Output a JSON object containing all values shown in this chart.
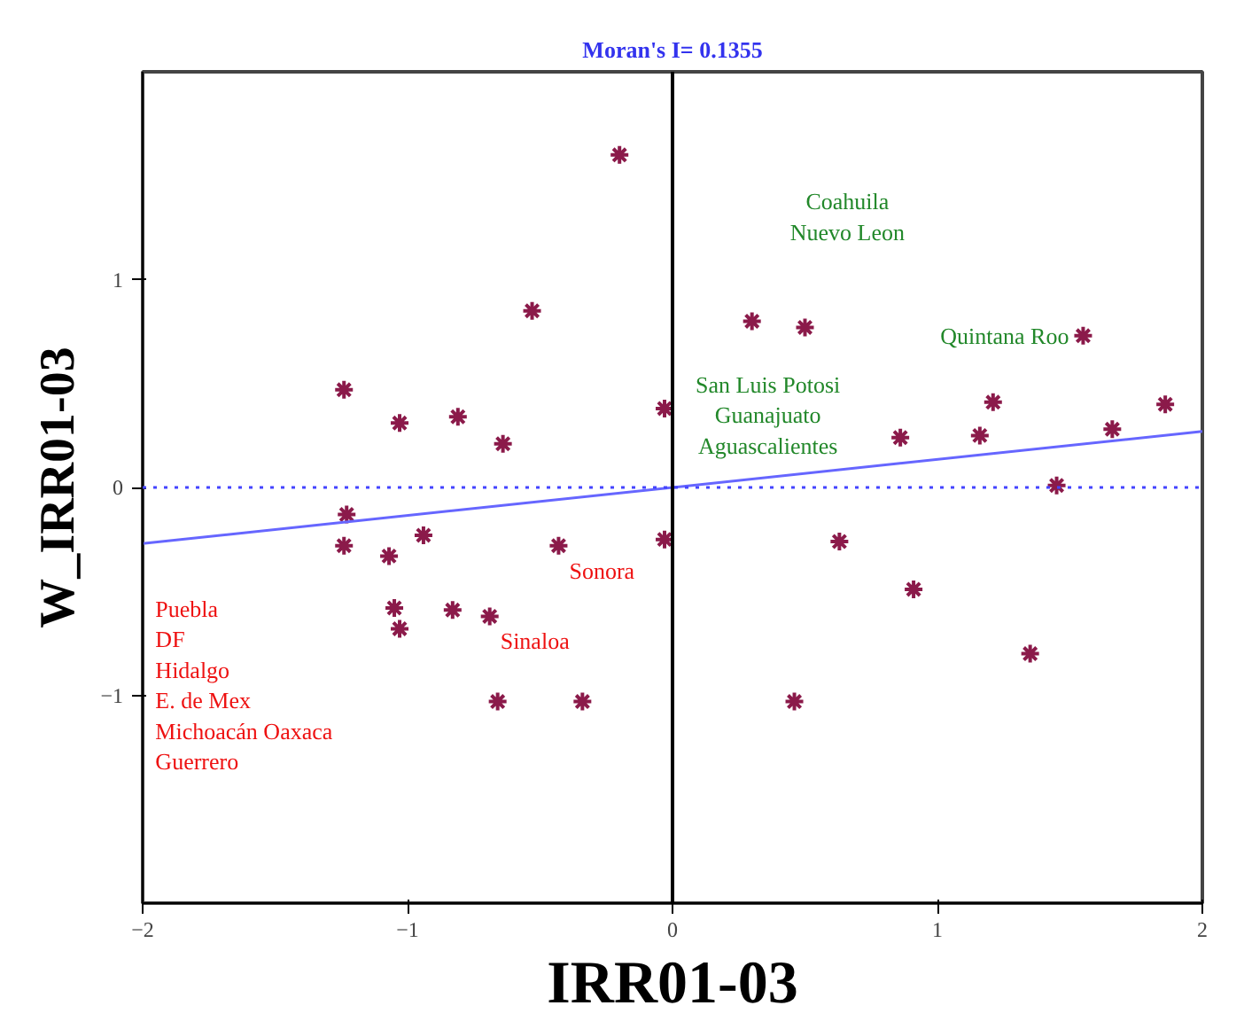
{
  "chart_data": {
    "type": "scatter",
    "title": "Moran's I= 0.1355",
    "xlabel": "IRR01-03",
    "ylabel": "W_IRR01-03",
    "xlim": [
      -2,
      2
    ],
    "ylim": [
      -2,
      2
    ],
    "xticks": [
      -2,
      -1,
      0,
      1,
      2
    ],
    "yticks": [
      -1,
      0,
      1
    ],
    "grid": false,
    "marker": "cross",
    "series": [
      {
        "color": "#8b1a4a",
        "x": [
          -0.2,
          -0.53,
          -1.24,
          -1.03,
          -0.81,
          -0.64,
          -0.03,
          0.3,
          0.5,
          1.55,
          0.86,
          1.16,
          1.21,
          1.66,
          1.86,
          1.45,
          -1.23,
          -1.24,
          -1.07,
          -0.94,
          -1.05,
          -1.03,
          -0.83,
          -0.69,
          -0.43,
          -0.03,
          -0.66,
          -0.34,
          0.63,
          0.91,
          1.35,
          0.46
        ],
        "values": [
          1.6,
          0.85,
          0.47,
          0.31,
          0.34,
          0.21,
          0.38,
          0.8,
          0.77,
          0.73,
          0.24,
          0.25,
          0.41,
          0.28,
          0.4,
          0.01,
          -0.13,
          -0.28,
          -0.33,
          -0.23,
          -0.58,
          -0.68,
          -0.59,
          -0.62,
          -0.28,
          -0.25,
          -1.03,
          -1.03,
          -0.26,
          -0.49,
          -0.8,
          -1.03
        ]
      },
      {
        "type": "line",
        "marker": "none",
        "color": "#6666ff",
        "x": [
          -2,
          2
        ],
        "values": [
          -0.27,
          0.27
        ]
      }
    ],
    "ref_lines": [
      {
        "axis": "y",
        "value": 0,
        "color": "#4444ff",
        "line_style": "dotted"
      },
      {
        "axis": "x",
        "value": 0,
        "color": "#000000",
        "line_style": "solid"
      }
    ],
    "annotations": [
      "Coahuila\nNuevo Leon",
      "San Luis Potosi\nGuanajuato\nAguascalientes",
      "Puebla\nDF\nHidalgo\nE. de Mex\nMichoacán Oaxaca\nGuerrero",
      {
        "text": "Quintana Roo",
        "x": 1.55,
        "y": 0.73
      },
      {
        "text": "Sonora",
        "x": -0.43,
        "y": -0.28
      },
      {
        "text": "Sinaloa",
        "x": -0.69,
        "y": -0.62
      }
    ]
  }
}
